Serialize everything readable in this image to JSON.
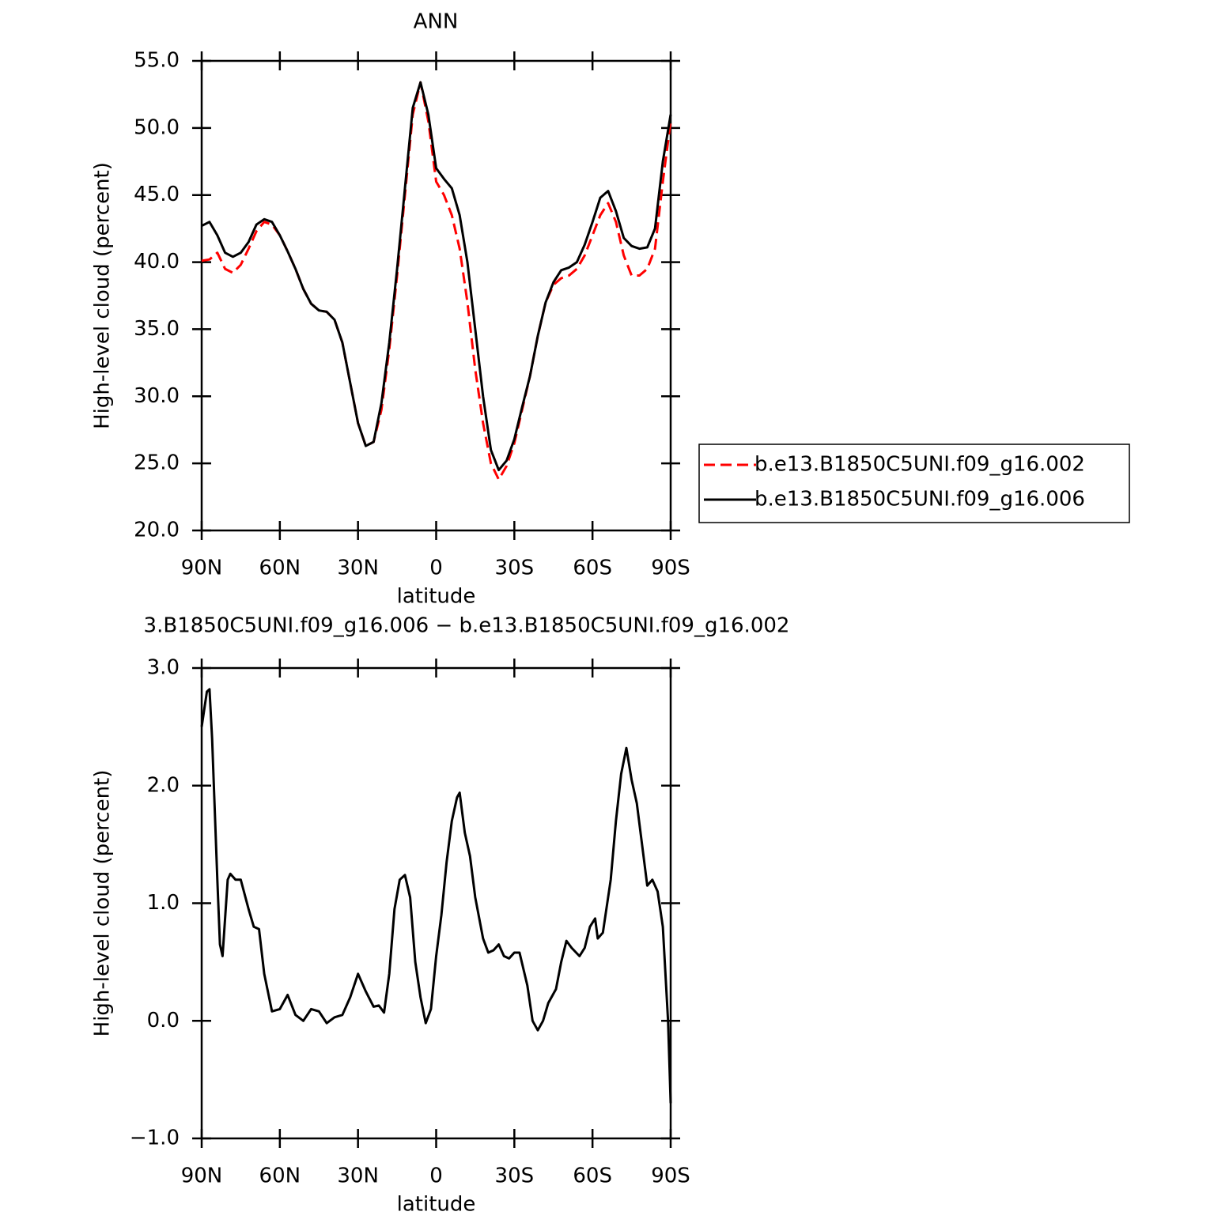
{
  "chart_data": [
    {
      "type": "line",
      "title": "ANN",
      "ylabel": "High-level cloud (percent)",
      "xlabel": "latitude",
      "xlim": [
        90,
        -90
      ],
      "ylim": [
        20,
        55
      ],
      "xticks": [
        {
          "value": 90,
          "label": "90N"
        },
        {
          "value": 60,
          "label": "60N"
        },
        {
          "value": 30,
          "label": "30N"
        },
        0,
        {
          "value": -30,
          "label": "30S"
        },
        {
          "value": -60,
          "label": "60S"
        },
        {
          "value": -90,
          "label": "90S"
        }
      ],
      "yticks": [
        {
          "value": 20,
          "label": "20.0"
        },
        {
          "value": 25,
          "label": "25.0"
        },
        {
          "value": 30,
          "label": "30.0"
        },
        {
          "value": 35,
          "label": "35.0"
        },
        {
          "value": 40,
          "label": "40.0"
        },
        {
          "value": 45,
          "label": "45.0"
        },
        {
          "value": 50,
          "label": "50.0"
        },
        {
          "value": 55,
          "label": "55.0"
        }
      ],
      "legend": "right",
      "x": [
        90,
        87,
        84,
        81,
        78,
        75,
        72,
        69,
        66,
        63,
        60,
        57,
        54,
        51,
        48,
        45,
        42,
        39,
        36,
        33,
        30,
        27,
        24,
        21,
        18,
        15,
        12,
        9,
        6,
        3,
        0,
        -3,
        -6,
        -9,
        -12,
        -15,
        -18,
        -21,
        -24,
        -27,
        -30,
        -33,
        -36,
        -39,
        -42,
        -45,
        -48,
        -51,
        -54,
        -57,
        -60,
        -63,
        -66,
        -69,
        -72,
        -75,
        -78,
        -81,
        -84,
        -87,
        -90
      ],
      "series": [
        {
          "name": "b.e13.B1850C5UNI.f09_g16.002",
          "color": "#ff0000",
          "dashed": true,
          "values": [
            40.1,
            40.2,
            40.7,
            39.5,
            39.2,
            39.8,
            41.0,
            42.3,
            43.0,
            42.8,
            42.0,
            40.8,
            39.5,
            38.0,
            36.9,
            36.4,
            36.3,
            35.7,
            34.0,
            31.0,
            28.0,
            26.3,
            26.6,
            29.0,
            33.5,
            39.0,
            45.0,
            51.0,
            53.4,
            50.5,
            46.0,
            45.0,
            43.5,
            41.0,
            37.0,
            32.0,
            28.0,
            25.0,
            23.8,
            24.8,
            26.5,
            29.0,
            31.5,
            34.5,
            37.0,
            38.3,
            38.8,
            39.0,
            39.5,
            40.5,
            42.0,
            43.5,
            44.4,
            43.0,
            40.5,
            39.0,
            39.0,
            39.5,
            41.0,
            46.0,
            50.5
          ]
        },
        {
          "name": "b.e13.B1850C5UNI.f09_g16.006",
          "color": "#000000",
          "values": [
            42.7,
            43.0,
            42.0,
            40.7,
            40.4,
            40.7,
            41.5,
            42.8,
            43.2,
            43.0,
            42.0,
            40.8,
            39.5,
            38.0,
            36.9,
            36.4,
            36.3,
            35.7,
            34.0,
            31.0,
            28.0,
            26.3,
            26.6,
            29.5,
            34.0,
            39.5,
            45.5,
            51.5,
            53.4,
            51.0,
            47.0,
            46.2,
            45.5,
            43.5,
            40.0,
            35.0,
            30.0,
            26.0,
            24.5,
            25.2,
            26.8,
            29.2,
            31.5,
            34.5,
            37.0,
            38.5,
            39.4,
            39.6,
            40.0,
            41.3,
            43.0,
            44.8,
            45.3,
            43.8,
            41.8,
            41.2,
            41.0,
            41.1,
            42.5,
            47.5,
            51.0
          ]
        }
      ]
    },
    {
      "type": "line",
      "title": "3.B1850C5UNI.f09_g16.006 − b.e13.B1850C5UNI.f09_g16.002",
      "ylabel": "High-level cloud (percent)",
      "xlabel": "latitude",
      "xlim": [
        90,
        -90
      ],
      "ylim": [
        -1,
        3
      ],
      "xticks": [
        {
          "value": 90,
          "label": "90N"
        },
        {
          "value": 60,
          "label": "60N"
        },
        {
          "value": 30,
          "label": "30N"
        },
        0,
        {
          "value": -30,
          "label": "30S"
        },
        {
          "value": -60,
          "label": "60S"
        },
        {
          "value": -90,
          "label": "90S"
        }
      ],
      "yticks": [
        {
          "value": -1,
          "label": "−1.0"
        },
        {
          "value": 0,
          "label": "0.0"
        },
        {
          "value": 1,
          "label": "1.0"
        },
        {
          "value": 2,
          "label": "2.0"
        },
        {
          "value": 3,
          "label": "3.0"
        }
      ],
      "x": [
        90,
        88,
        87,
        86,
        84,
        83,
        82,
        80,
        79,
        77,
        75,
        72,
        70,
        68,
        66,
        63,
        60,
        57,
        54,
        51,
        48,
        45,
        42,
        39,
        36,
        33,
        30,
        27,
        24,
        22,
        20,
        18,
        16,
        14,
        12,
        10,
        8,
        6,
        4,
        2,
        0,
        -2,
        -4,
        -6,
        -8,
        -9,
        -11,
        -13,
        -15,
        -18,
        -20,
        -22,
        -24,
        -26,
        -28,
        -30,
        -32,
        -35,
        -37,
        -39,
        -41,
        -43,
        -46,
        -48,
        -50,
        -52,
        -55,
        -57,
        -59,
        -61,
        -62,
        -64,
        -67,
        -69,
        -71,
        -73,
        -75,
        -77,
        -79,
        -81,
        -83,
        -85,
        -87,
        -89,
        -90
      ],
      "series": [
        {
          "color": "#000000",
          "values": [
            2.5,
            2.8,
            2.82,
            2.4,
            1.2,
            0.65,
            0.55,
            1.2,
            1.25,
            1.2,
            1.2,
            0.95,
            0.8,
            0.78,
            0.4,
            0.08,
            0.1,
            0.22,
            0.05,
            0.0,
            0.1,
            0.08,
            -0.02,
            0.03,
            0.05,
            0.2,
            0.4,
            0.25,
            0.12,
            0.13,
            0.07,
            0.4,
            0.95,
            1.2,
            1.24,
            1.05,
            0.5,
            0.2,
            -0.02,
            0.1,
            0.55,
            0.9,
            1.35,
            1.7,
            1.9,
            1.94,
            1.6,
            1.4,
            1.05,
            0.7,
            0.58,
            0.6,
            0.65,
            0.55,
            0.53,
            0.58,
            0.58,
            0.3,
            0.0,
            -0.08,
            0.0,
            0.15,
            0.27,
            0.5,
            0.68,
            0.62,
            0.55,
            0.62,
            0.8,
            0.87,
            0.7,
            0.75,
            1.2,
            1.7,
            2.1,
            2.32,
            2.05,
            1.85,
            1.5,
            1.15,
            1.2,
            1.1,
            0.8,
            0.0,
            -0.7
          ]
        }
      ]
    }
  ]
}
